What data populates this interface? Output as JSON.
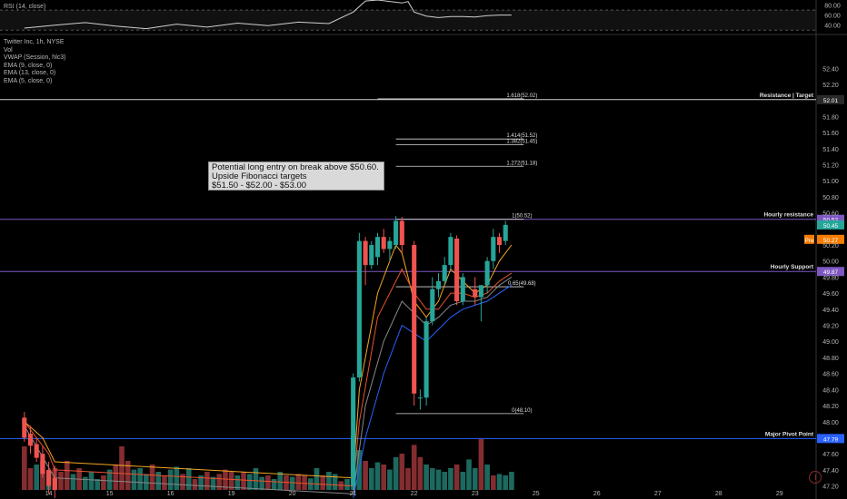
{
  "rsi": {
    "label": "RSI (14, close)",
    "ticks": [
      "80.00",
      "60.00",
      "40.00"
    ]
  },
  "legend": {
    "symbol": "Twitter Inc, 1h, NYSE",
    "lines": [
      "Vol",
      "VWAP (Session, hlc3)",
      "EMA (9, close, 0)",
      "EMA (13, close, 0)",
      "EMA (5, close, 0)"
    ]
  },
  "note": {
    "lines": [
      "Potential long entry on break above $50.60.",
      "Upside Fibonacci targets",
      "$51.50 - $52.00  - $53.00"
    ]
  },
  "fib_levels": [
    {
      "label": "1.618(52.02)",
      "value": 52.02
    },
    {
      "label": "1.414(51.52)",
      "value": 51.52
    },
    {
      "label": "1.382(51.45)",
      "value": 51.45
    },
    {
      "label": "1.272(51.18)",
      "value": 51.18
    },
    {
      "label": "1(50.52)",
      "value": 50.52
    },
    {
      "label": "0.65(49.68)",
      "value": 49.68
    },
    {
      "label": "0(48.10)",
      "value": 48.1
    }
  ],
  "horizontal_lines": [
    {
      "label": "Resistance | Target",
      "value": 52.01,
      "tag": "52.01",
      "color": "#d0d0d0"
    },
    {
      "label": "Hourly resistance",
      "value": 50.52,
      "tag": "50.52",
      "color": "#7e57c2"
    },
    {
      "label": "Hourly Support",
      "value": 49.87,
      "tag": "49.87",
      "color": "#7e57c2"
    },
    {
      "label": "Major Pivot Point",
      "value": 47.79,
      "tag": "47.79",
      "color": "#2962ff"
    }
  ],
  "price_tags": [
    {
      "text": "50.45",
      "value": 50.45,
      "color": "#26a69a"
    },
    {
      "text": "Pre",
      "value": 50.27,
      "color": "#f57c00"
    },
    {
      "text": "50.27",
      "value": 50.27,
      "color": "#f57c00"
    }
  ],
  "y_ticks": [
    "52.40",
    "52.20",
    "51.80",
    "51.60",
    "51.40",
    "51.20",
    "51.00",
    "50.80",
    "50.60",
    "50.20",
    "50.00",
    "49.80",
    "49.60",
    "49.40",
    "49.20",
    "49.00",
    "48.80",
    "48.60",
    "48.40",
    "48.20",
    "48.00",
    "47.60",
    "47.40",
    "47.20"
  ],
  "x_ticks": [
    {
      "label": "14",
      "x": 4
    },
    {
      "label": "15",
      "x": 14
    },
    {
      "label": "16",
      "x": 24
    },
    {
      "label": "19",
      "x": 34
    },
    {
      "label": "20",
      "x": 44
    },
    {
      "label": "21",
      "x": 54
    },
    {
      "label": "22",
      "x": 64
    },
    {
      "label": "23",
      "x": 74
    },
    {
      "label": "25",
      "x": 84
    },
    {
      "label": "26",
      "x": 94
    },
    {
      "label": "27",
      "x": 104
    },
    {
      "label": "28",
      "x": 114
    },
    {
      "label": "29",
      "x": 124
    }
  ],
  "chart_data": {
    "type": "candlestick",
    "title": "Twitter Inc, 1h, NYSE",
    "y_range": [
      47.15,
      52.55
    ],
    "x_range": [
      -4,
      130
    ],
    "candles": [
      {
        "x": 0,
        "o": 48.05,
        "h": 48.12,
        "l": 47.75,
        "c": 47.8
      },
      {
        "x": 1,
        "o": 47.85,
        "h": 47.95,
        "l": 47.6,
        "c": 47.7
      },
      {
        "x": 2,
        "o": 47.72,
        "h": 47.8,
        "l": 47.5,
        "c": 47.55
      },
      {
        "x": 3,
        "o": 47.6,
        "h": 47.7,
        "l": 47.3,
        "c": 47.35
      },
      {
        "x": 4,
        "o": 47.4,
        "h": 47.5,
        "l": 47.1,
        "c": 47.2
      },
      {
        "x": 5,
        "o": 47.3,
        "h": 47.45,
        "l": 47.05,
        "c": 47.15
      },
      {
        "x": 54,
        "o": 47.2,
        "h": 48.6,
        "l": 47.15,
        "c": 48.55
      },
      {
        "x": 55,
        "o": 48.55,
        "h": 50.35,
        "l": 48.5,
        "c": 50.25
      },
      {
        "x": 56,
        "o": 50.25,
        "h": 50.3,
        "l": 49.7,
        "c": 49.95
      },
      {
        "x": 57,
        "o": 49.95,
        "h": 50.25,
        "l": 49.9,
        "c": 50.2
      },
      {
        "x": 58,
        "o": 50.05,
        "h": 50.35,
        "l": 49.95,
        "c": 50.3
      },
      {
        "x": 59,
        "o": 50.3,
        "h": 50.4,
        "l": 50.1,
        "c": 50.15
      },
      {
        "x": 60,
        "o": 50.15,
        "h": 50.3,
        "l": 50.0,
        "c": 50.25
      },
      {
        "x": 61,
        "o": 50.2,
        "h": 50.56,
        "l": 50.15,
        "c": 50.5
      },
      {
        "x": 62,
        "o": 50.5,
        "h": 50.55,
        "l": 50.1,
        "c": 50.2
      },
      {
        "x": 64,
        "o": 50.2,
        "h": 50.25,
        "l": 48.2,
        "c": 48.35
      },
      {
        "x": 65,
        "o": 48.3,
        "h": 48.4,
        "l": 48.15,
        "c": 48.3
      },
      {
        "x": 66,
        "o": 48.3,
        "h": 49.3,
        "l": 48.2,
        "c": 49.25
      },
      {
        "x": 67,
        "o": 49.25,
        "h": 49.8,
        "l": 49.2,
        "c": 49.65
      },
      {
        "x": 68,
        "o": 49.65,
        "h": 49.85,
        "l": 49.55,
        "c": 49.75
      },
      {
        "x": 69,
        "o": 49.75,
        "h": 50.05,
        "l": 49.7,
        "c": 49.95
      },
      {
        "x": 70,
        "o": 49.95,
        "h": 50.35,
        "l": 49.9,
        "c": 50.3
      },
      {
        "x": 71,
        "o": 50.28,
        "h": 50.32,
        "l": 49.45,
        "c": 49.5
      },
      {
        "x": 72,
        "o": 49.5,
        "h": 49.85,
        "l": 49.45,
        "c": 49.8
      },
      {
        "x": 74,
        "o": 49.65,
        "h": 49.8,
        "l": 49.45,
        "c": 49.55
      },
      {
        "x": 75,
        "o": 49.55,
        "h": 49.7,
        "l": 49.25,
        "c": 49.7
      },
      {
        "x": 76,
        "o": 49.7,
        "h": 50.05,
        "l": 49.6,
        "c": 50.0
      },
      {
        "x": 77,
        "o": 50.0,
        "h": 50.4,
        "l": 49.9,
        "c": 50.3
      },
      {
        "x": 78,
        "o": 50.3,
        "h": 50.35,
        "l": 50.1,
        "c": 50.2
      },
      {
        "x": 79,
        "o": 50.25,
        "h": 50.5,
        "l": 50.2,
        "c": 50.45
      }
    ],
    "volume": [
      {
        "x": 0,
        "v": 0.6,
        "up": false
      },
      {
        "x": 1,
        "v": 0.3,
        "up": false
      },
      {
        "x": 2,
        "v": 0.35,
        "up": true
      },
      {
        "x": 3,
        "v": 0.4,
        "up": false
      },
      {
        "x": 4,
        "v": 0.25,
        "up": true
      },
      {
        "x": 5,
        "v": 0.3,
        "up": false
      },
      {
        "x": 6,
        "v": 0.25,
        "up": false
      },
      {
        "x": 7,
        "v": 0.4,
        "up": false
      },
      {
        "x": 8,
        "v": 0.22,
        "up": true
      },
      {
        "x": 9,
        "v": 0.3,
        "up": false
      },
      {
        "x": 10,
        "v": 0.18,
        "up": true
      },
      {
        "x": 11,
        "v": 0.25,
        "up": true
      },
      {
        "x": 12,
        "v": 0.15,
        "up": true
      },
      {
        "x": 13,
        "v": 0.2,
        "up": false
      },
      {
        "x": 14,
        "v": 0.28,
        "up": true
      },
      {
        "x": 15,
        "v": 0.35,
        "up": false
      },
      {
        "x": 16,
        "v": 0.6,
        "up": false
      },
      {
        "x": 17,
        "v": 0.4,
        "up": false
      },
      {
        "x": 18,
        "v": 0.28,
        "up": true
      },
      {
        "x": 19,
        "v": 0.3,
        "up": true
      },
      {
        "x": 20,
        "v": 0.22,
        "up": true
      },
      {
        "x": 21,
        "v": 0.35,
        "up": false
      },
      {
        "x": 22,
        "v": 0.25,
        "up": true
      },
      {
        "x": 23,
        "v": 0.2,
        "up": false
      },
      {
        "x": 24,
        "v": 0.28,
        "up": true
      },
      {
        "x": 25,
        "v": 0.32,
        "up": true
      },
      {
        "x": 26,
        "v": 0.22,
        "up": false
      },
      {
        "x": 27,
        "v": 0.3,
        "up": true
      },
      {
        "x": 28,
        "v": 0.15,
        "up": false
      },
      {
        "x": 29,
        "v": 0.2,
        "up": true
      },
      {
        "x": 30,
        "v": 0.25,
        "up": false
      },
      {
        "x": 31,
        "v": 0.18,
        "up": true
      },
      {
        "x": 32,
        "v": 0.22,
        "up": false
      },
      {
        "x": 33,
        "v": 0.28,
        "up": false
      },
      {
        "x": 34,
        "v": 0.25,
        "up": false
      },
      {
        "x": 35,
        "v": 0.2,
        "up": true
      },
      {
        "x": 36,
        "v": 0.25,
        "up": false
      },
      {
        "x": 37,
        "v": 0.22,
        "up": true
      },
      {
        "x": 38,
        "v": 0.3,
        "up": true
      },
      {
        "x": 39,
        "v": 0.18,
        "up": true
      },
      {
        "x": 40,
        "v": 0.2,
        "up": false
      },
      {
        "x": 41,
        "v": 0.15,
        "up": true
      },
      {
        "x": 42,
        "v": 0.25,
        "up": true
      },
      {
        "x": 43,
        "v": 0.2,
        "up": false
      },
      {
        "x": 44,
        "v": 0.18,
        "up": true
      },
      {
        "x": 45,
        "v": 0.22,
        "up": false
      },
      {
        "x": 46,
        "v": 0.2,
        "up": false
      },
      {
        "x": 47,
        "v": 0.16,
        "up": true
      },
      {
        "x": 48,
        "v": 0.3,
        "up": true
      },
      {
        "x": 49,
        "v": 0.2,
        "up": false
      },
      {
        "x": 50,
        "v": 0.25,
        "up": true
      },
      {
        "x": 51,
        "v": 0.22,
        "up": true
      },
      {
        "x": 52,
        "v": 0.12,
        "up": false
      },
      {
        "x": 53,
        "v": 0.15,
        "up": true
      },
      {
        "x": 54,
        "v": 0.75,
        "up": true
      },
      {
        "x": 55,
        "v": 0.55,
        "up": true
      },
      {
        "x": 56,
        "v": 0.4,
        "up": false
      },
      {
        "x": 57,
        "v": 0.3,
        "up": true
      },
      {
        "x": 58,
        "v": 0.38,
        "up": true
      },
      {
        "x": 59,
        "v": 0.35,
        "up": false
      },
      {
        "x": 60,
        "v": 0.28,
        "up": true
      },
      {
        "x": 61,
        "v": 0.45,
        "up": true
      },
      {
        "x": 62,
        "v": 0.5,
        "up": false
      },
      {
        "x": 63,
        "v": 0.3,
        "up": false
      },
      {
        "x": 64,
        "v": 0.62,
        "up": false
      },
      {
        "x": 65,
        "v": 0.45,
        "up": false
      },
      {
        "x": 66,
        "v": 0.35,
        "up": true
      },
      {
        "x": 67,
        "v": 0.3,
        "up": true
      },
      {
        "x": 68,
        "v": 0.28,
        "up": true
      },
      {
        "x": 69,
        "v": 0.25,
        "up": true
      },
      {
        "x": 70,
        "v": 0.3,
        "up": true
      },
      {
        "x": 71,
        "v": 0.35,
        "up": false
      },
      {
        "x": 72,
        "v": 0.25,
        "up": true
      },
      {
        "x": 73,
        "v": 0.42,
        "up": true
      },
      {
        "x": 74,
        "v": 0.3,
        "up": true
      },
      {
        "x": 75,
        "v": 0.7,
        "up": false
      },
      {
        "x": 76,
        "v": 0.35,
        "up": true
      },
      {
        "x": 77,
        "v": 0.2,
        "up": false
      },
      {
        "x": 78,
        "v": 0.22,
        "up": true
      },
      {
        "x": 79,
        "v": 0.2,
        "up": true
      },
      {
        "x": 80,
        "v": 0.25,
        "up": true
      }
    ],
    "rsi": [
      {
        "x": 0,
        "v": 34
      },
      {
        "x": 5,
        "v": 40
      },
      {
        "x": 10,
        "v": 45
      },
      {
        "x": 15,
        "v": 38
      },
      {
        "x": 20,
        "v": 33
      },
      {
        "x": 25,
        "v": 42
      },
      {
        "x": 30,
        "v": 36
      },
      {
        "x": 35,
        "v": 44
      },
      {
        "x": 40,
        "v": 39
      },
      {
        "x": 45,
        "v": 46
      },
      {
        "x": 50,
        "v": 43
      },
      {
        "x": 54,
        "v": 66
      },
      {
        "x": 56,
        "v": 88
      },
      {
        "x": 58,
        "v": 90
      },
      {
        "x": 62,
        "v": 84
      },
      {
        "x": 63,
        "v": 87
      },
      {
        "x": 64,
        "v": 66
      },
      {
        "x": 66,
        "v": 58
      },
      {
        "x": 68,
        "v": 55
      },
      {
        "x": 70,
        "v": 57
      },
      {
        "x": 72,
        "v": 57
      },
      {
        "x": 74,
        "v": 56
      },
      {
        "x": 76,
        "v": 59
      },
      {
        "x": 78,
        "v": 60
      },
      {
        "x": 80,
        "v": 60
      }
    ],
    "ema_lines": [
      {
        "color": "#f5a623",
        "points": [
          [
            0,
            48.0
          ],
          [
            3,
            47.8
          ],
          [
            5,
            47.5
          ],
          [
            54,
            47.3
          ],
          [
            55,
            48.4
          ],
          [
            58,
            49.6
          ],
          [
            61,
            50.2
          ],
          [
            62,
            50.1
          ],
          [
            64,
            49.5
          ],
          [
            66,
            49.3
          ],
          [
            68,
            49.5
          ],
          [
            70,
            49.9
          ],
          [
            72,
            49.75
          ],
          [
            74,
            49.6
          ],
          [
            76,
            49.7
          ],
          [
            78,
            50.0
          ],
          [
            80,
            50.2
          ]
        ]
      },
      {
        "color": "#e8542c",
        "points": [
          [
            0,
            48.0
          ],
          [
            4,
            47.6
          ],
          [
            5,
            47.4
          ],
          [
            54,
            47.2
          ],
          [
            55,
            48.0
          ],
          [
            58,
            49.3
          ],
          [
            62,
            49.9
          ],
          [
            64,
            49.6
          ],
          [
            66,
            49.4
          ],
          [
            68,
            49.4
          ],
          [
            70,
            49.6
          ],
          [
            72,
            49.6
          ],
          [
            74,
            49.55
          ],
          [
            76,
            49.6
          ],
          [
            78,
            49.75
          ],
          [
            80,
            49.85
          ]
        ]
      },
      {
        "color": "#888888",
        "points": [
          [
            0,
            47.95
          ],
          [
            5,
            47.3
          ],
          [
            54,
            47.1
          ],
          [
            56,
            48.2
          ],
          [
            59,
            49.0
          ],
          [
            62,
            49.5
          ],
          [
            64,
            49.35
          ],
          [
            66,
            49.2
          ],
          [
            68,
            49.3
          ],
          [
            70,
            49.45
          ],
          [
            72,
            49.5
          ],
          [
            74,
            49.5
          ],
          [
            76,
            49.55
          ],
          [
            78,
            49.7
          ],
          [
            80,
            49.8
          ]
        ]
      },
      {
        "color": "#2962ff",
        "points": [
          [
            54,
            47.05
          ],
          [
            56,
            47.8
          ],
          [
            59,
            48.6
          ],
          [
            62,
            49.2
          ],
          [
            64,
            49.1
          ],
          [
            66,
            49.0
          ],
          [
            68,
            49.15
          ],
          [
            70,
            49.3
          ],
          [
            72,
            49.4
          ],
          [
            74,
            49.45
          ],
          [
            76,
            49.5
          ],
          [
            78,
            49.6
          ],
          [
            80,
            49.7
          ]
        ]
      }
    ]
  }
}
